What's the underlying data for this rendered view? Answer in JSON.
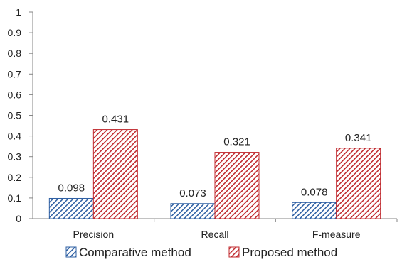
{
  "chart_data": {
    "type": "bar",
    "categories": [
      "Precision",
      "Recall",
      "F-measure"
    ],
    "series": [
      {
        "name": "Comparative method",
        "values": [
          0.098,
          0.073,
          0.078
        ],
        "color": "#2E5FA3",
        "pattern": "diagonal-hatch"
      },
      {
        "name": "Proposed method",
        "values": [
          0.431,
          0.321,
          0.341
        ],
        "color": "#C0282D",
        "pattern": "diagonal-hatch"
      }
    ],
    "data_labels": [
      [
        "0.098",
        "0.073",
        "0.078"
      ],
      [
        "0.431",
        "0.321",
        "0.341"
      ]
    ],
    "yticks": [
      "0",
      "0.1",
      "0.2",
      "0.3",
      "0.4",
      "0.5",
      "0.6",
      "0.7",
      "0.8",
      "0.9",
      "1"
    ],
    "ylim": [
      0,
      1
    ],
    "grid": false,
    "legend": "bottom",
    "title": "",
    "xlabel": "",
    "ylabel": ""
  }
}
